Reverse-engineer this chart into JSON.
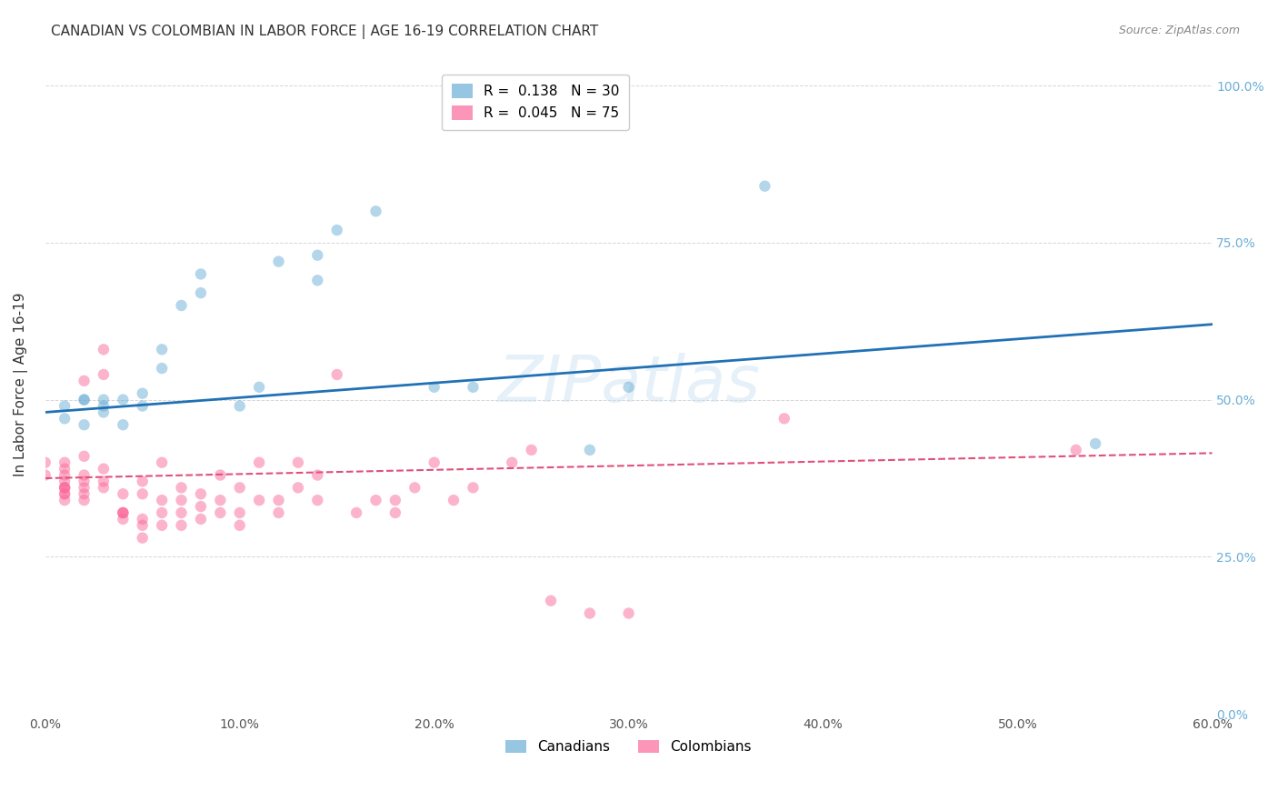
{
  "title": "CANADIAN VS COLOMBIAN IN LABOR FORCE | AGE 16-19 CORRELATION CHART",
  "source": "Source: ZipAtlas.com",
  "ylabel": "In Labor Force | Age 16-19",
  "xlim": [
    0.0,
    0.6
  ],
  "ylim": [
    0.0,
    1.05
  ],
  "xtick_vals": [
    0.0,
    0.1,
    0.2,
    0.3,
    0.4,
    0.5,
    0.6
  ],
  "xtick_labels": [
    "0.0%",
    "10.0%",
    "20.0%",
    "30.0%",
    "40.0%",
    "50.0%",
    "60.0%"
  ],
  "ytick_vals": [
    0.0,
    0.25,
    0.5,
    0.75,
    1.0
  ],
  "ytick_labels": [
    "0.0%",
    "25.0%",
    "50.0%",
    "75.0%",
    "100.0%"
  ],
  "canadians_x": [
    0.01,
    0.01,
    0.02,
    0.02,
    0.02,
    0.03,
    0.03,
    0.03,
    0.04,
    0.04,
    0.05,
    0.05,
    0.06,
    0.06,
    0.07,
    0.08,
    0.08,
    0.1,
    0.11,
    0.12,
    0.14,
    0.14,
    0.15,
    0.17,
    0.2,
    0.22,
    0.28,
    0.3,
    0.37,
    0.54
  ],
  "canadians_y": [
    0.47,
    0.49,
    0.5,
    0.5,
    0.46,
    0.48,
    0.49,
    0.5,
    0.46,
    0.5,
    0.49,
    0.51,
    0.55,
    0.58,
    0.65,
    0.67,
    0.7,
    0.49,
    0.52,
    0.72,
    0.69,
    0.73,
    0.77,
    0.8,
    0.52,
    0.52,
    0.42,
    0.52,
    0.84,
    0.43
  ],
  "colombians_x": [
    0.0,
    0.0,
    0.01,
    0.01,
    0.01,
    0.01,
    0.01,
    0.01,
    0.01,
    0.01,
    0.01,
    0.01,
    0.02,
    0.02,
    0.02,
    0.02,
    0.02,
    0.02,
    0.02,
    0.03,
    0.03,
    0.03,
    0.03,
    0.03,
    0.04,
    0.04,
    0.04,
    0.04,
    0.04,
    0.05,
    0.05,
    0.05,
    0.05,
    0.05,
    0.06,
    0.06,
    0.06,
    0.06,
    0.07,
    0.07,
    0.07,
    0.07,
    0.08,
    0.08,
    0.08,
    0.09,
    0.09,
    0.09,
    0.1,
    0.1,
    0.1,
    0.11,
    0.11,
    0.12,
    0.12,
    0.13,
    0.13,
    0.14,
    0.14,
    0.15,
    0.16,
    0.17,
    0.18,
    0.18,
    0.19,
    0.2,
    0.21,
    0.22,
    0.24,
    0.25,
    0.26,
    0.28,
    0.3,
    0.38,
    0.53
  ],
  "colombians_y": [
    0.4,
    0.38,
    0.36,
    0.38,
    0.37,
    0.35,
    0.34,
    0.36,
    0.35,
    0.36,
    0.39,
    0.4,
    0.34,
    0.35,
    0.36,
    0.37,
    0.38,
    0.41,
    0.53,
    0.36,
    0.37,
    0.39,
    0.54,
    0.58,
    0.31,
    0.32,
    0.32,
    0.32,
    0.35,
    0.28,
    0.3,
    0.31,
    0.35,
    0.37,
    0.3,
    0.32,
    0.34,
    0.4,
    0.3,
    0.32,
    0.34,
    0.36,
    0.31,
    0.33,
    0.35,
    0.32,
    0.34,
    0.38,
    0.3,
    0.32,
    0.36,
    0.34,
    0.4,
    0.32,
    0.34,
    0.36,
    0.4,
    0.34,
    0.38,
    0.54,
    0.32,
    0.34,
    0.32,
    0.34,
    0.36,
    0.4,
    0.34,
    0.36,
    0.4,
    0.42,
    0.18,
    0.16,
    0.16,
    0.47,
    0.42
  ],
  "canadian_line_x": [
    0.0,
    0.6
  ],
  "canadian_line_y": [
    0.48,
    0.62
  ],
  "colombian_line_x": [
    0.0,
    0.6
  ],
  "colombian_line_y": [
    0.375,
    0.415
  ],
  "canadian_color": "#6baed6",
  "colombian_color": "#fb6a9a",
  "canadian_line_color": "#2171b5",
  "colombian_line_color": "#e0507a",
  "background_color": "#ffffff",
  "grid_color": "#cccccc",
  "title_fontsize": 11,
  "axis_label_fontsize": 11,
  "tick_fontsize": 10,
  "legend_fontsize": 11,
  "marker_size": 80,
  "marker_alpha": 0.5,
  "watermark": "ZIPatlas",
  "right_ytick_color": "#6baed6"
}
